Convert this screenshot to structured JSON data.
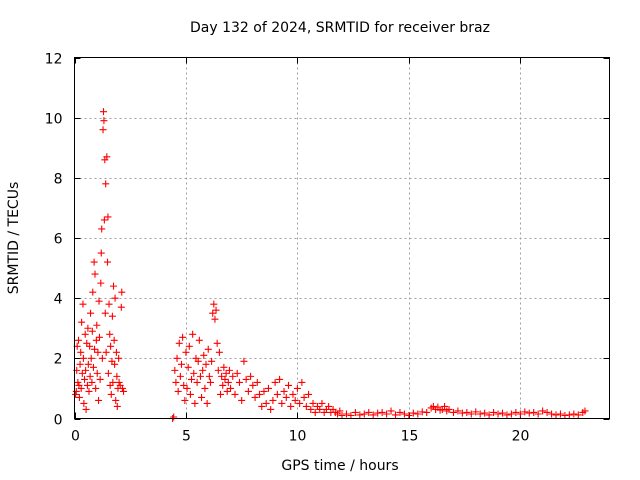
{
  "chart_data": {
    "type": "scatter",
    "title": "Day 132 of 2024, SRMTID for receiver braz",
    "xlabel": "GPS time / hours",
    "ylabel": "SRMTID / TECUs",
    "xlim": [
      0,
      24
    ],
    "ylim": [
      0,
      12
    ],
    "xticks": [
      0,
      5,
      10,
      15,
      20
    ],
    "yticks": [
      0,
      2,
      4,
      6,
      8,
      10,
      12
    ],
    "grid": true,
    "marker": "plus",
    "color": "#ff0000",
    "series": [
      {
        "name": "SRMTID",
        "points": [
          [
            0.05,
            0.8
          ],
          [
            0.08,
            0.9
          ],
          [
            0.1,
            1.6
          ],
          [
            0.12,
            2.4
          ],
          [
            0.15,
            1.2
          ],
          [
            0.18,
            2.6
          ],
          [
            0.2,
            1.1
          ],
          [
            0.22,
            0.7
          ],
          [
            0.25,
            1.8
          ],
          [
            0.28,
            2.2
          ],
          [
            0.3,
            1.0
          ],
          [
            0.32,
            3.2
          ],
          [
            0.35,
            1.5
          ],
          [
            0.38,
            3.8
          ],
          [
            0.4,
            2.0
          ],
          [
            0.42,
            0.5
          ],
          [
            0.45,
            1.3
          ],
          [
            0.48,
            2.8
          ],
          [
            0.5,
            1.6
          ],
          [
            0.52,
            0.3
          ],
          [
            0.55,
            2.5
          ],
          [
            0.58,
            1.1
          ],
          [
            0.6,
            3.0
          ],
          [
            0.62,
            1.8
          ],
          [
            0.65,
            0.9
          ],
          [
            0.68,
            2.4
          ],
          [
            0.7,
            1.4
          ],
          [
            0.72,
            3.5
          ],
          [
            0.75,
            2.0
          ],
          [
            0.78,
            1.2
          ],
          [
            0.8,
            2.9
          ],
          [
            0.82,
            4.2
          ],
          [
            0.85,
            1.7
          ],
          [
            0.88,
            5.2
          ],
          [
            0.9,
            2.3
          ],
          [
            0.92,
            4.8
          ],
          [
            0.95,
            1.0
          ],
          [
            0.98,
            2.6
          ],
          [
            1.0,
            3.1
          ],
          [
            1.02,
            1.5
          ],
          [
            1.05,
            2.2
          ],
          [
            1.08,
            0.6
          ],
          [
            1.1,
            3.9
          ],
          [
            1.12,
            2.7
          ],
          [
            1.15,
            1.3
          ],
          [
            1.18,
            4.5
          ],
          [
            1.2,
            5.5
          ],
          [
            1.22,
            6.3
          ],
          [
            1.25,
            2.0
          ],
          [
            1.28,
            9.6
          ],
          [
            1.3,
            10.2
          ],
          [
            1.32,
            9.9
          ],
          [
            1.34,
            6.6
          ],
          [
            1.36,
            8.6
          ],
          [
            1.38,
            3.5
          ],
          [
            1.4,
            7.8
          ],
          [
            1.42,
            2.2
          ],
          [
            1.45,
            8.7
          ],
          [
            1.48,
            5.2
          ],
          [
            1.5,
            6.7
          ],
          [
            1.52,
            1.5
          ],
          [
            1.55,
            3.8
          ],
          [
            1.58,
            2.8
          ],
          [
            1.6,
            1.1
          ],
          [
            1.62,
            2.4
          ],
          [
            1.65,
            0.8
          ],
          [
            1.68,
            1.9
          ],
          [
            1.7,
            3.4
          ],
          [
            1.72,
            1.2
          ],
          [
            1.75,
            4.4
          ],
          [
            1.78,
            2.6
          ],
          [
            1.8,
            1.8
          ],
          [
            1.82,
            4.0
          ],
          [
            1.85,
            0.6
          ],
          [
            1.88,
            2.2
          ],
          [
            1.9,
            1.4
          ],
          [
            1.92,
            0.4
          ],
          [
            1.95,
            1.0
          ],
          [
            1.98,
            2.0
          ],
          [
            2.0,
            1.2
          ],
          [
            2.05,
            1.1
          ],
          [
            2.1,
            3.7
          ],
          [
            2.12,
            4.2
          ],
          [
            2.15,
            1.0
          ],
          [
            2.2,
            0.9
          ],
          [
            4.4,
            0.0
          ],
          [
            4.45,
            0.05
          ],
          [
            4.5,
            1.6
          ],
          [
            4.55,
            1.2
          ],
          [
            4.6,
            2.0
          ],
          [
            4.65,
            0.9
          ],
          [
            4.7,
            2.5
          ],
          [
            4.75,
            1.4
          ],
          [
            4.8,
            1.8
          ],
          [
            4.85,
            2.7
          ],
          [
            4.9,
            1.1
          ],
          [
            4.95,
            0.6
          ],
          [
            5.0,
            2.2
          ],
          [
            5.05,
            1.0
          ],
          [
            5.1,
            1.7
          ],
          [
            5.15,
            2.4
          ],
          [
            5.2,
            0.8
          ],
          [
            5.25,
            1.3
          ],
          [
            5.3,
            2.8
          ],
          [
            5.35,
            1.5
          ],
          [
            5.4,
            0.5
          ],
          [
            5.45,
            2.0
          ],
          [
            5.5,
            1.2
          ],
          [
            5.55,
            1.9
          ],
          [
            5.6,
            2.6
          ],
          [
            5.65,
            1.4
          ],
          [
            5.7,
            0.7
          ],
          [
            5.75,
            1.6
          ],
          [
            5.8,
            2.1
          ],
          [
            5.85,
            1.0
          ],
          [
            5.9,
            1.8
          ],
          [
            5.95,
            0.5
          ],
          [
            6.0,
            2.3
          ],
          [
            6.05,
            1.4
          ],
          [
            6.1,
            1.2
          ],
          [
            6.15,
            1.9
          ],
          [
            6.2,
            3.5
          ],
          [
            6.25,
            3.8
          ],
          [
            6.3,
            3.3
          ],
          [
            6.35,
            3.6
          ],
          [
            6.4,
            2.5
          ],
          [
            6.45,
            1.6
          ],
          [
            6.5,
            2.2
          ],
          [
            6.55,
            0.8
          ],
          [
            6.6,
            1.4
          ],
          [
            6.65,
            1.1
          ],
          [
            6.7,
            1.7
          ],
          [
            6.75,
            1.3
          ],
          [
            6.8,
            1.5
          ],
          [
            6.85,
            0.9
          ],
          [
            6.9,
            1.2
          ],
          [
            6.95,
            1.6
          ],
          [
            7.0,
            1.0
          ],
          [
            7.1,
            1.4
          ],
          [
            7.2,
            0.8
          ],
          [
            7.3,
            1.5
          ],
          [
            7.4,
            1.2
          ],
          [
            7.5,
            0.6
          ],
          [
            7.6,
            1.9
          ],
          [
            7.7,
            1.3
          ],
          [
            7.8,
            0.9
          ],
          [
            7.9,
            1.4
          ],
          [
            8.0,
            1.1
          ],
          [
            8.1,
            0.7
          ],
          [
            8.2,
            1.2
          ],
          [
            8.3,
            0.8
          ],
          [
            8.4,
            0.4
          ],
          [
            8.5,
            0.9
          ],
          [
            8.6,
            0.5
          ],
          [
            8.7,
            1.0
          ],
          [
            8.8,
            0.3
          ],
          [
            8.9,
            0.6
          ],
          [
            9.0,
            1.2
          ],
          [
            9.1,
            0.8
          ],
          [
            9.2,
            1.3
          ],
          [
            9.3,
            0.5
          ],
          [
            9.4,
            0.9
          ],
          [
            9.5,
            0.7
          ],
          [
            9.6,
            1.1
          ],
          [
            9.7,
            0.4
          ],
          [
            9.8,
            0.8
          ],
          [
            9.9,
            0.6
          ],
          [
            10.0,
            1.0
          ],
          [
            10.1,
            0.5
          ],
          [
            10.2,
            1.2
          ],
          [
            10.3,
            0.7
          ],
          [
            10.4,
            0.4
          ],
          [
            10.5,
            0.8
          ],
          [
            10.6,
            0.3
          ],
          [
            10.7,
            0.5
          ],
          [
            10.8,
            0.2
          ],
          [
            10.9,
            0.4
          ],
          [
            11.0,
            0.3
          ],
          [
            11.1,
            0.5
          ],
          [
            11.2,
            0.2
          ],
          [
            11.3,
            0.3
          ],
          [
            11.4,
            0.4
          ],
          [
            11.5,
            0.2
          ],
          [
            11.6,
            0.3
          ],
          [
            11.7,
            0.2
          ],
          [
            11.8,
            0.15
          ],
          [
            11.9,
            0.25
          ],
          [
            12.0,
            0.1
          ],
          [
            12.2,
            0.15
          ],
          [
            12.4,
            0.1
          ],
          [
            12.6,
            0.2
          ],
          [
            12.8,
            0.12
          ],
          [
            13.0,
            0.15
          ],
          [
            13.2,
            0.2
          ],
          [
            13.4,
            0.12
          ],
          [
            13.6,
            0.18
          ],
          [
            13.8,
            0.2
          ],
          [
            14.0,
            0.15
          ],
          [
            14.2,
            0.25
          ],
          [
            14.4,
            0.12
          ],
          [
            14.6,
            0.2
          ],
          [
            14.8,
            0.15
          ],
          [
            15.0,
            0.1
          ],
          [
            15.2,
            0.18
          ],
          [
            15.4,
            0.15
          ],
          [
            15.6,
            0.22
          ],
          [
            15.8,
            0.2
          ],
          [
            16.0,
            0.35
          ],
          [
            16.1,
            0.4
          ],
          [
            16.2,
            0.3
          ],
          [
            16.3,
            0.38
          ],
          [
            16.4,
            0.28
          ],
          [
            16.5,
            0.3
          ],
          [
            16.6,
            0.4
          ],
          [
            16.7,
            0.25
          ],
          [
            16.8,
            0.3
          ],
          [
            17.0,
            0.2
          ],
          [
            17.2,
            0.25
          ],
          [
            17.4,
            0.18
          ],
          [
            17.6,
            0.2
          ],
          [
            17.8,
            0.15
          ],
          [
            18.0,
            0.22
          ],
          [
            18.2,
            0.15
          ],
          [
            18.4,
            0.18
          ],
          [
            18.6,
            0.12
          ],
          [
            18.8,
            0.2
          ],
          [
            19.0,
            0.15
          ],
          [
            19.2,
            0.18
          ],
          [
            19.4,
            0.12
          ],
          [
            19.6,
            0.15
          ],
          [
            19.8,
            0.2
          ],
          [
            20.0,
            0.15
          ],
          [
            20.2,
            0.22
          ],
          [
            20.4,
            0.18
          ],
          [
            20.6,
            0.2
          ],
          [
            20.8,
            0.15
          ],
          [
            21.0,
            0.25
          ],
          [
            21.2,
            0.2
          ],
          [
            21.4,
            0.15
          ],
          [
            21.6,
            0.12
          ],
          [
            21.8,
            0.15
          ],
          [
            22.0,
            0.1
          ],
          [
            22.2,
            0.12
          ],
          [
            22.4,
            0.15
          ],
          [
            22.6,
            0.12
          ],
          [
            22.8,
            0.2
          ],
          [
            22.9,
            0.25
          ]
        ]
      }
    ]
  }
}
